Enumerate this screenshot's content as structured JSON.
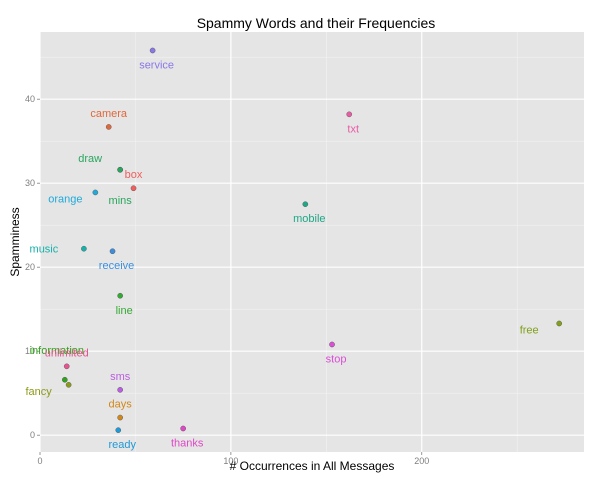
{
  "chart_data": {
    "type": "scatter",
    "title": "Spammy Words and their Frequencies",
    "xlabel": "# Occurrences in All Messages",
    "ylabel": "Spamminess",
    "xlim": [
      0,
      285
    ],
    "ylim": [
      -2,
      48
    ],
    "x_ticks": [
      0,
      100,
      200
    ],
    "y_ticks": [
      0,
      10,
      20,
      30,
      40
    ],
    "grid": true,
    "legend": "none",
    "points": [
      {
        "label": "service",
        "x": 59,
        "y": 45.8,
        "color": "#8b77e8",
        "label_pos": "below"
      },
      {
        "label": "camera",
        "x": 36,
        "y": 36.7,
        "color": "#e0683a",
        "label_pos": "above"
      },
      {
        "label": "txt",
        "x": 162,
        "y": 38.2,
        "color": "#e85ca4",
        "label_pos": "below"
      },
      {
        "label": "draw",
        "x": 42,
        "y": 31.6,
        "color": "#2aa65e",
        "label_pos": "above-left"
      },
      {
        "label": "box",
        "x": 49,
        "y": 29.4,
        "color": "#f15e5e",
        "label_pos": "above"
      },
      {
        "label": "orange",
        "x": 29,
        "y": 28.9,
        "color": "#1eaadb",
        "label_pos": "below-left"
      },
      {
        "label": "mins",
        "x": 42,
        "y": 31.6,
        "color": "#2aa65e",
        "label_pos": "below-far"
      },
      {
        "label": "mobile",
        "x": 139,
        "y": 27.5,
        "color": "#1fa887",
        "label_pos": "below"
      },
      {
        "label": "music",
        "x": 23,
        "y": 22.2,
        "color": "#16b1ab",
        "label_pos": "left"
      },
      {
        "label": "receive",
        "x": 38,
        "y": 21.9,
        "color": "#3a8ede",
        "label_pos": "below"
      },
      {
        "label": "line",
        "x": 42,
        "y": 16.6,
        "color": "#36a834",
        "label_pos": "below"
      },
      {
        "label": "information",
        "x": 13,
        "y": 6.6,
        "color": "#32a11e",
        "label_pos": "above-far"
      },
      {
        "label": "unlimited",
        "x": 14,
        "y": 8.2,
        "color": "#e8528e",
        "label_pos": "above"
      },
      {
        "label": "free",
        "x": 272,
        "y": 13.3,
        "color": "#81a01c",
        "label_pos": "below-left"
      },
      {
        "label": "stop",
        "x": 153,
        "y": 10.8,
        "color": "#d94fd6",
        "label_pos": "below"
      },
      {
        "label": "sms",
        "x": 42,
        "y": 5.4,
        "color": "#b95fe0",
        "label_pos": "above"
      },
      {
        "label": "fancy",
        "x": 15,
        "y": 6.0,
        "color": "#8d9a16",
        "label_pos": "below-left"
      },
      {
        "label": "days",
        "x": 42,
        "y": 2.1,
        "color": "#d1881a",
        "label_pos": "above"
      },
      {
        "label": "ready",
        "x": 41,
        "y": 0.6,
        "color": "#1f9ad6",
        "label_pos": "below"
      },
      {
        "label": "thanks",
        "x": 75,
        "y": 0.8,
        "color": "#e047c8",
        "label_pos": "below"
      }
    ]
  }
}
